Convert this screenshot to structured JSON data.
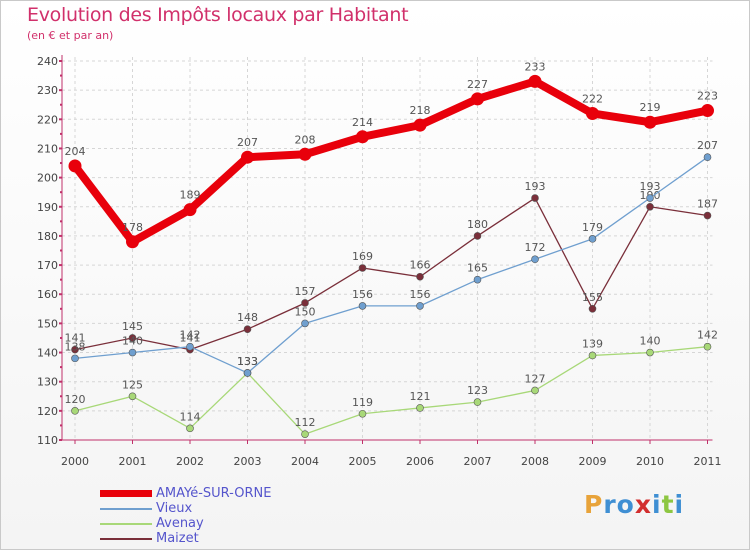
{
  "title": "Evolution des Impôts locaux par Habitant",
  "subtitle": "(en € et par an)",
  "logo": {
    "letters": [
      "P",
      "r",
      "o",
      "x",
      "i",
      "t",
      "i"
    ],
    "colors": [
      "#e8a33a",
      "#3f8fd3",
      "#3f8fd3",
      "#d22e2e",
      "#3f8fd3",
      "#8dc641",
      "#3f8fd3"
    ]
  },
  "chart_data": {
    "type": "line",
    "categories": [
      "2000",
      "2001",
      "2002",
      "2003",
      "2004",
      "2005",
      "2006",
      "2007",
      "2008",
      "2009",
      "2010",
      "2011"
    ],
    "ylim": [
      110,
      240
    ],
    "yticks": [
      110,
      120,
      130,
      140,
      150,
      160,
      170,
      180,
      190,
      200,
      210,
      220,
      230,
      240
    ],
    "grid": true,
    "legend_position": "bottom-left",
    "series": [
      {
        "name": "AMAYé-SUR-ORNE",
        "color": "#e8000b",
        "values": [
          204,
          178,
          189,
          207,
          208,
          214,
          218,
          227,
          233,
          222,
          219,
          223
        ]
      },
      {
        "name": "Vieux",
        "color": "#6f9fcf",
        "values": [
          138,
          140,
          142,
          133,
          150,
          156,
          156,
          165,
          172,
          179,
          193,
          207
        ]
      },
      {
        "name": "Avenay",
        "color": "#a8d878",
        "values": [
          120,
          125,
          114,
          133,
          112,
          119,
          121,
          123,
          127,
          139,
          140,
          142
        ]
      },
      {
        "name": "Maizet",
        "color": "#7a2f3a",
        "values": [
          141,
          145,
          141,
          148,
          157,
          169,
          166,
          180,
          193,
          155,
          190,
          187
        ]
      }
    ]
  }
}
